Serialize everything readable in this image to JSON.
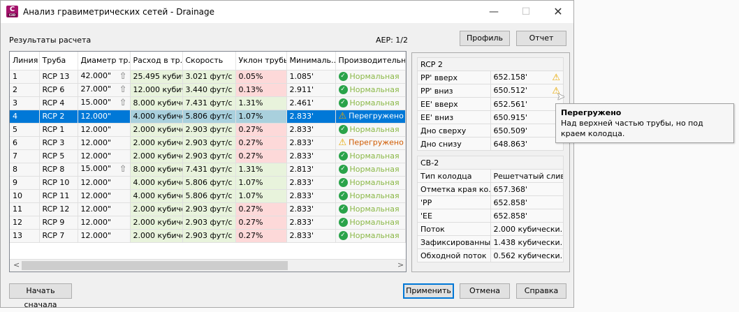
{
  "window": {
    "title": "Анализ гравиметрических сетей - Drainage",
    "app_icon": "C3D"
  },
  "header": {
    "results_label": "Результаты расчета",
    "aep": "AEP: 1/2",
    "profile_button": "Профиль",
    "report_button": "Отчет"
  },
  "grid": {
    "columns": [
      "Линия",
      "Труба",
      "Диаметр тр...",
      "Расход в тр...",
      "Скорость",
      "Уклон трубы",
      "Минималь...",
      "Производительн..."
    ],
    "selected_row": 4,
    "rows": [
      {
        "line": "1",
        "pipe": "RCP 13",
        "diameter": "42.000\"",
        "up": true,
        "flow": "25.495 кубич",
        "velocity": "3.021 фут/с",
        "slope": "0.05%",
        "slope_bad": true,
        "min": "1.085'",
        "status": "Нормальная",
        "warn": false
      },
      {
        "line": "2",
        "pipe": "RCP 6",
        "diameter": "27.000\"",
        "up": true,
        "flow": "12.000 кубич",
        "velocity": "3.440 фут/с",
        "slope": "0.13%",
        "slope_bad": true,
        "min": "2.911'",
        "status": "Нормальная",
        "warn": false
      },
      {
        "line": "3",
        "pipe": "RCP 4",
        "diameter": "15.000\"",
        "up": true,
        "flow": "8.000 кубиче",
        "velocity": "7.431 фут/с",
        "slope": "1.31%",
        "slope_bad": false,
        "min": "2.461'",
        "status": "Нормальная",
        "warn": false
      },
      {
        "line": "4",
        "pipe": "RCP 2",
        "diameter": "12.000\"",
        "up": false,
        "flow": "4.000 кубиче",
        "velocity": "5.806 фут/с",
        "slope": "1.07%",
        "slope_bad": false,
        "min": "2.833'",
        "status": "Перегружено",
        "warn": true
      },
      {
        "line": "5",
        "pipe": "RCP 1",
        "diameter": "12.000\"",
        "up": false,
        "flow": "2.000 кубиче",
        "velocity": "2.903 фут/с",
        "slope": "0.27%",
        "slope_bad": true,
        "min": "2.833'",
        "status": "Нормальная",
        "warn": false
      },
      {
        "line": "6",
        "pipe": "RCP 3",
        "diameter": "12.000\"",
        "up": false,
        "flow": "2.000 кубиче",
        "velocity": "2.903 фут/с",
        "slope": "0.27%",
        "slope_bad": true,
        "min": "2.833'",
        "status": "Перегружено",
        "warn": true
      },
      {
        "line": "7",
        "pipe": "RCP 5",
        "diameter": "12.000\"",
        "up": false,
        "flow": "2.000 кубиче",
        "velocity": "2.903 фут/с",
        "slope": "0.27%",
        "slope_bad": true,
        "min": "2.833'",
        "status": "Нормальная",
        "warn": false
      },
      {
        "line": "8",
        "pipe": "RCP 8",
        "diameter": "15.000\"",
        "up": true,
        "flow": "8.000 кубиче",
        "velocity": "7.431 фут/с",
        "slope": "1.31%",
        "slope_bad": false,
        "min": "2.813'",
        "status": "Нормальная",
        "warn": false
      },
      {
        "line": "9",
        "pipe": "RCP 10",
        "diameter": "12.000\"",
        "up": false,
        "flow": "4.000 кубиче",
        "velocity": "5.806 фут/с",
        "slope": "1.07%",
        "slope_bad": false,
        "min": "2.833'",
        "status": "Нормальная",
        "warn": false
      },
      {
        "line": "10",
        "pipe": "RCP 11",
        "diameter": "12.000\"",
        "up": false,
        "flow": "4.000 кубиче",
        "velocity": "5.806 фут/с",
        "slope": "1.07%",
        "slope_bad": false,
        "min": "2.833'",
        "status": "Нормальная",
        "warn": false
      },
      {
        "line": "11",
        "pipe": "RCP 12",
        "diameter": "12.000\"",
        "up": false,
        "flow": "2.000 кубиче",
        "velocity": "2.903 фут/с",
        "slope": "0.27%",
        "slope_bad": true,
        "min": "2.833'",
        "status": "Нормальная",
        "warn": false
      },
      {
        "line": "12",
        "pipe": "RCP 9",
        "diameter": "12.000\"",
        "up": false,
        "flow": "2.000 кубиче",
        "velocity": "2.903 фут/с",
        "slope": "0.27%",
        "slope_bad": true,
        "min": "2.833'",
        "status": "Нормальная",
        "warn": false
      },
      {
        "line": "13",
        "pipe": "RCP 7",
        "diameter": "12.000\"",
        "up": false,
        "flow": "2.000 кубиче",
        "velocity": "2.903 фут/с",
        "slope": "0.27%",
        "slope_bad": true,
        "min": "2.833'",
        "status": "Нормальная",
        "warn": false
      }
    ]
  },
  "pipe_panel": {
    "title": "RCP 2",
    "rows": [
      {
        "k": "PP' вверх",
        "v": "652.158'",
        "warn": true
      },
      {
        "k": "PP' вниз",
        "v": "650.512'",
        "warn": true
      },
      {
        "k": "EE' вверх",
        "v": "652.561'",
        "warn": false
      },
      {
        "k": "EE' вниз",
        "v": "650.915'",
        "warn": false
      },
      {
        "k": "Дно сверху",
        "v": "650.509'",
        "warn": false
      },
      {
        "k": "Дно снизу",
        "v": "648.863'",
        "warn": false
      }
    ]
  },
  "structure_panel": {
    "title": "CB-2",
    "rows": [
      {
        "k": "Тип колодца",
        "v": "Решетчатый слив"
      },
      {
        "k": "Отметка края ко...",
        "v": "657.368'"
      },
      {
        "k": "'PP",
        "v": "652.858'"
      },
      {
        "k": "'EE",
        "v": "652.858'"
      },
      {
        "k": "Поток",
        "v": "2.000 кубически..."
      },
      {
        "k": "Зафиксированны...",
        "v": "1.438 кубически..."
      },
      {
        "k": "Обходной поток",
        "v": "0.562 кубически..."
      }
    ]
  },
  "tooltip": {
    "title": "Перегружено",
    "text": "Над верхней частью трубы, но под краем колодца."
  },
  "footer": {
    "restart": "Начать сначала",
    "apply": "Применить",
    "cancel": "Отмена",
    "help": "Справка"
  },
  "colors": {
    "ok_cell": "#e8f3dc",
    "bad_cell": "#fdd9d9",
    "selection": "#0078d7",
    "status_ok": "#8bb847",
    "status_warn": "#d05a00"
  }
}
